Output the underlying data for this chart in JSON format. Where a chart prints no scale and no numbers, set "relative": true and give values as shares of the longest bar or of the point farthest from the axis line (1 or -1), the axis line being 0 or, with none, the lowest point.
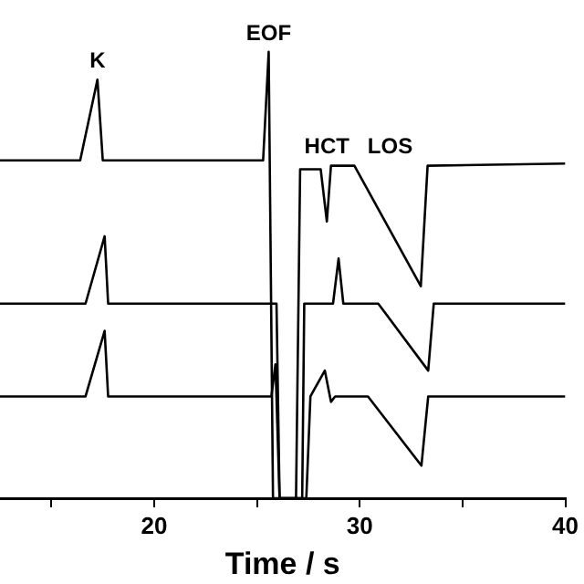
{
  "chart_data": {
    "type": "line",
    "xlabel": "Time / s",
    "relative": true,
    "xlim": [
      12.5,
      40
    ],
    "xticks": [
      {
        "value": 15,
        "label": null
      },
      20,
      {
        "value": 25,
        "label": null
      },
      30,
      {
        "value": 35,
        "label": null
      },
      40
    ],
    "legend": false,
    "grid": false,
    "marker": "none",
    "line_style": "solid",
    "annotations": [
      {
        "text": "K",
        "x": 17.24,
        "y": 0.938
      },
      {
        "text": "EOF",
        "x": 25.57,
        "y": 1.0
      },
      {
        "text": "HCT",
        "x": 28.4,
        "y": 0.745
      },
      "LOS"
    ],
    "series": [
      {
        "color": "#000000",
        "x": [
          12.5,
          16.4,
          17.24,
          17.5,
          25.3,
          25.57,
          25.78,
          26.9,
          27.1,
          28.1,
          28.4,
          28.6,
          29.74,
          32.97,
          33.3,
          40
        ],
        "values": [
          0.757,
          0.757,
          0.938,
          0.757,
          0.757,
          1.0,
          0,
          0,
          0.737,
          0.737,
          0.62,
          0.745,
          0.745,
          0.475,
          0.745,
          0.75
        ]
      },
      {
        "color": "#000000",
        "x": [
          12.5,
          16.66,
          17.59,
          17.76,
          25.95,
          26.1,
          27.2,
          27.3,
          28.7,
          28.97,
          29.2,
          30.9,
          33.33,
          33.6,
          40
        ],
        "values": [
          0.436,
          0.436,
          0.587,
          0.436,
          0.436,
          0,
          0,
          0.436,
          0.436,
          0.537,
          0.436,
          0.436,
          0.286,
          0.436,
          0.436
        ]
      },
      {
        "color": "#000000",
        "x": [
          12.5,
          16.66,
          17.59,
          17.76,
          25.7,
          25.9,
          26.1,
          27.4,
          27.6,
          28.3,
          28.6,
          28.8,
          30.4,
          33.0,
          33.33,
          40
        ],
        "values": [
          0.228,
          0.228,
          0.375,
          0.228,
          0.228,
          0.3,
          0,
          0,
          0.228,
          0.286,
          0.216,
          0.228,
          0.228,
          0.073,
          0.228,
          0.228
        ]
      }
    ]
  }
}
